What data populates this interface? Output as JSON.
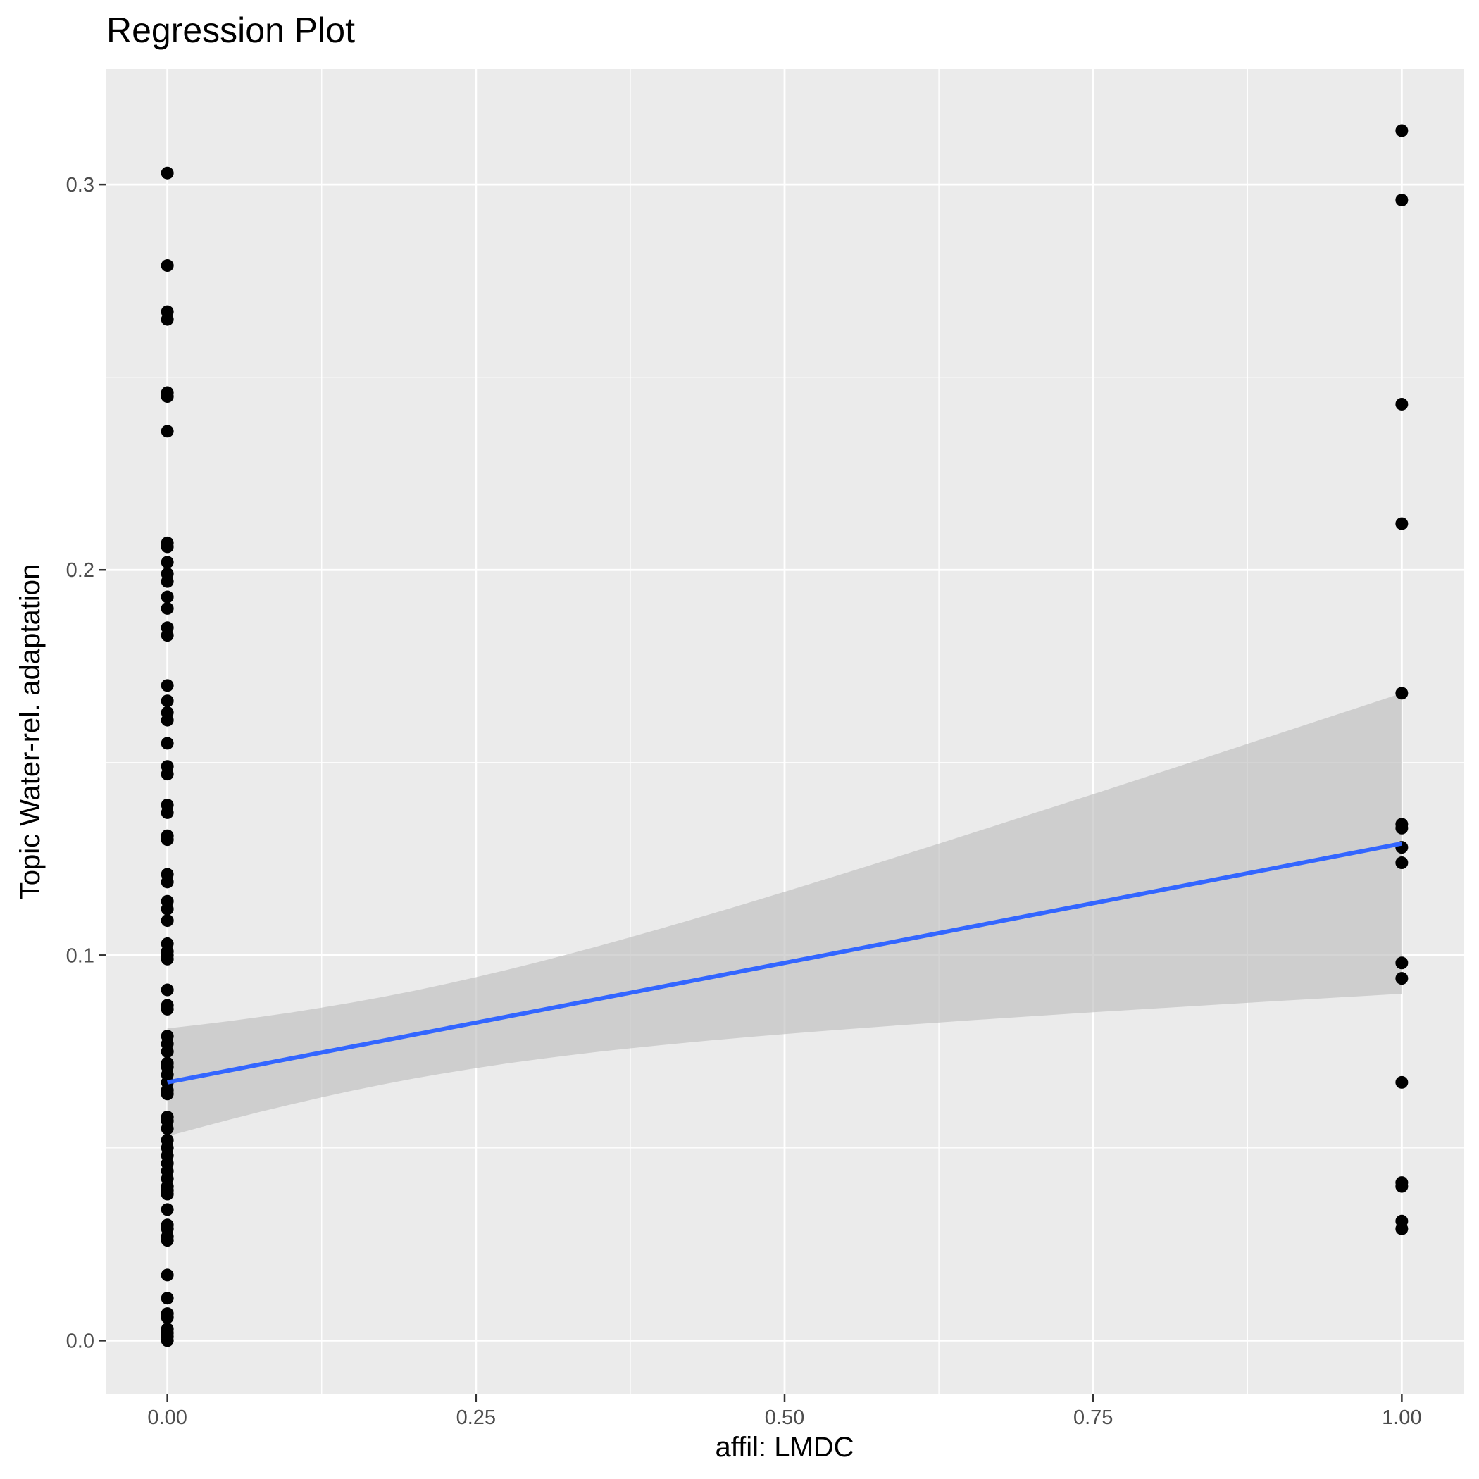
{
  "chart_data": {
    "type": "scatter",
    "title": "Regression Plot",
    "xlabel": "affil: LMDC",
    "ylabel": "Topic Water-rel. adaptation",
    "xlim": [
      -0.05,
      1.05
    ],
    "ylim": [
      -0.014,
      0.33
    ],
    "x_ticks": [
      0.0,
      0.25,
      0.5,
      0.75,
      1.0
    ],
    "x_tick_labels": [
      "0.00",
      "0.25",
      "0.50",
      "0.75",
      "1.00"
    ],
    "y_ticks": [
      0.0,
      0.1,
      0.2,
      0.3
    ],
    "y_tick_labels": [
      "0.0",
      "0.1",
      "0.2",
      "0.3"
    ],
    "grid": true,
    "colors": {
      "panel": "#ebebeb",
      "gridline": "#ffffff",
      "point": "#000000",
      "fit_line": "#3366ff",
      "ribbon": "#bebebe"
    },
    "series": [
      {
        "x_value": 0,
        "y": [
          0.303,
          0.279,
          0.267,
          0.265,
          0.246,
          0.245,
          0.236,
          0.207,
          0.206,
          0.202,
          0.199,
          0.197,
          0.193,
          0.19,
          0.185,
          0.183,
          0.17,
          0.166,
          0.163,
          0.161,
          0.155,
          0.149,
          0.147,
          0.139,
          0.137,
          0.131,
          0.13,
          0.121,
          0.119,
          0.114,
          0.112,
          0.109,
          0.103,
          0.101,
          0.1,
          0.099,
          0.091,
          0.087,
          0.086,
          0.079,
          0.077,
          0.075,
          0.072,
          0.071,
          0.069,
          0.067,
          0.065,
          0.064,
          0.058,
          0.057,
          0.055,
          0.052,
          0.05,
          0.048,
          0.046,
          0.044,
          0.042,
          0.04,
          0.039,
          0.038,
          0.034,
          0.03,
          0.029,
          0.027,
          0.026,
          0.017,
          0.011,
          0.007,
          0.006,
          0.003,
          0.002,
          0.001,
          0.0
        ]
      },
      {
        "x_value": 1,
        "y": [
          0.314,
          0.296,
          0.243,
          0.212,
          0.168,
          0.134,
          0.133,
          0.128,
          0.124,
          0.098,
          0.094,
          0.067,
          0.041,
          0.04,
          0.031,
          0.029
        ]
      }
    ],
    "fit": {
      "x": [
        0,
        1
      ],
      "y": [
        0.067,
        0.129
      ],
      "ci_lower": [
        0.054,
        0.09
      ],
      "ci_upper": [
        0.081,
        0.168
      ]
    }
  }
}
